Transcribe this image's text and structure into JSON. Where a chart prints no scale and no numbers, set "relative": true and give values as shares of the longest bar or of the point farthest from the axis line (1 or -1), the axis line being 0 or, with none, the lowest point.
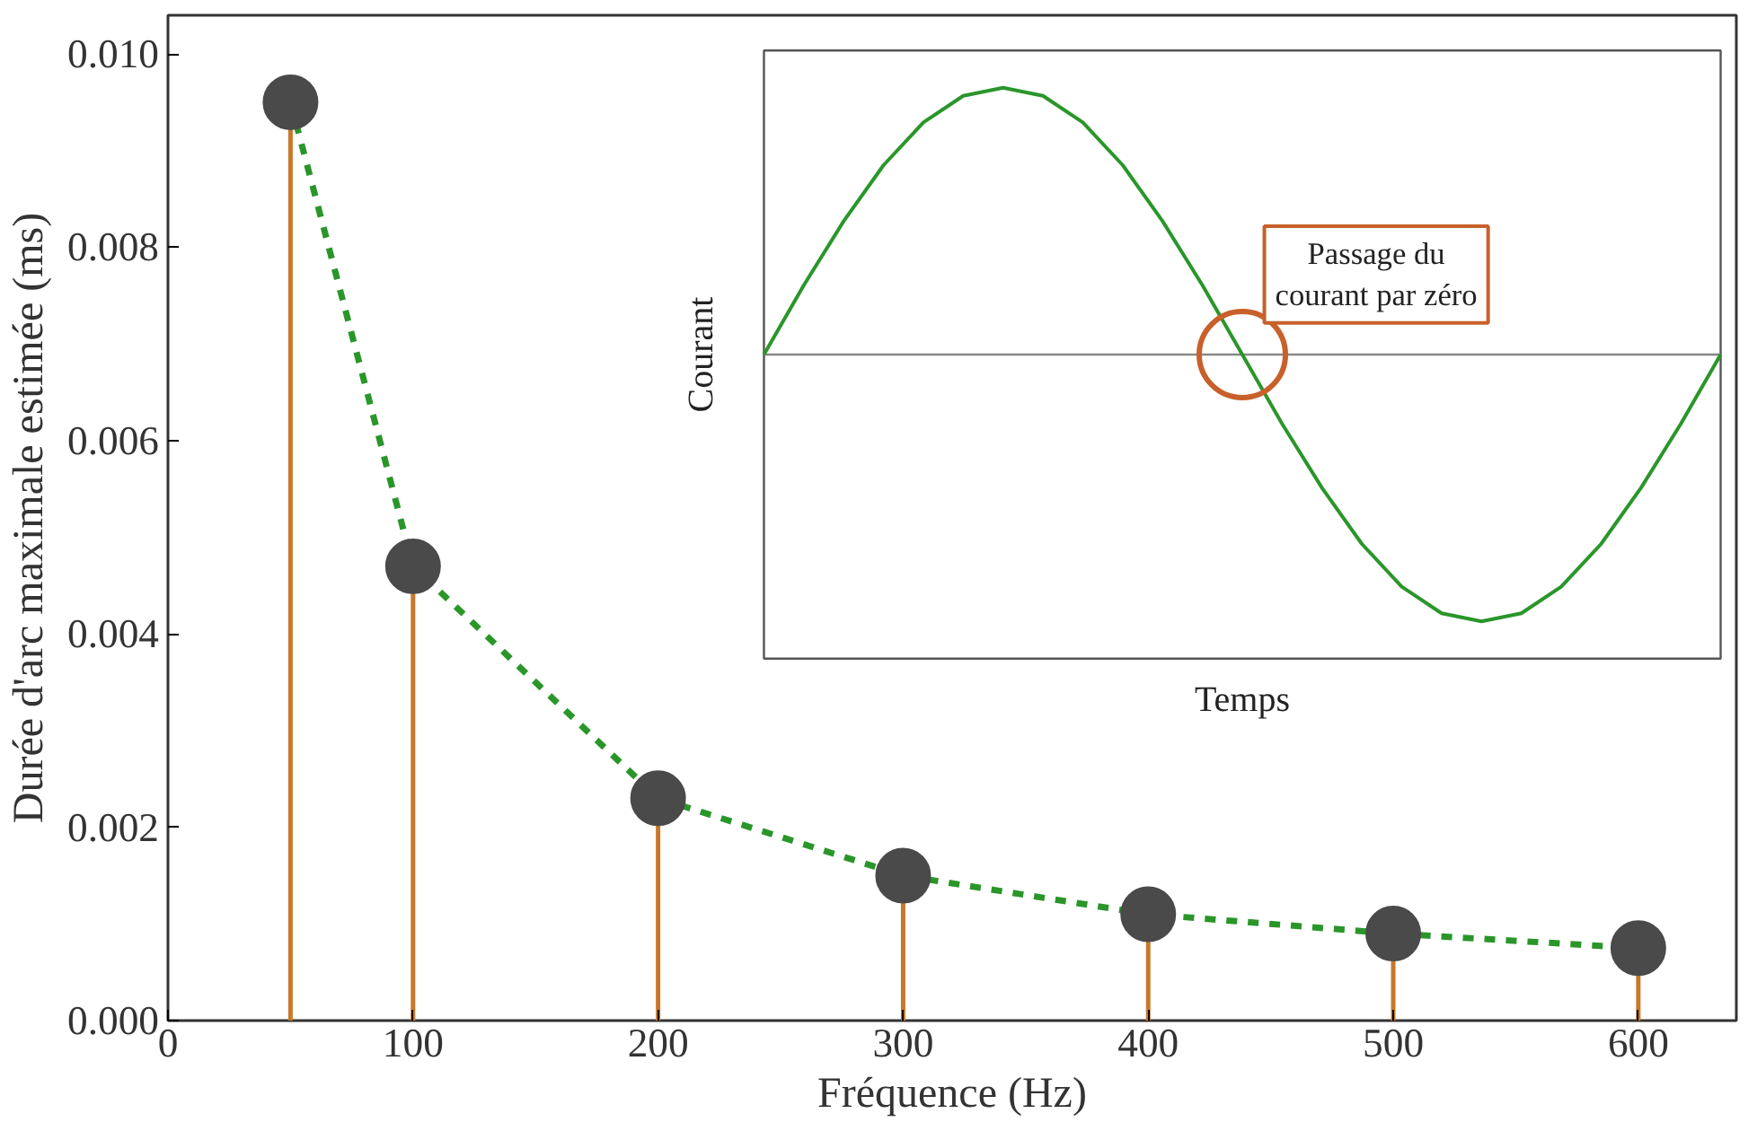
{
  "chart_data": [
    {
      "type": "lollipop",
      "xlabel": "Fréquence (Hz)",
      "ylabel": "Durée d'arc maximale estimée (ms)",
      "x": [
        50,
        100,
        200,
        300,
        400,
        500,
        600
      ],
      "series": [
        {
          "type": "lollipop",
          "color": "#c8782a",
          "colors": [
            "#4a4a4a",
            "#4a4a4a",
            "#4a4a4a",
            "#4a4a4a",
            "#4a4a4a",
            "#4a4a4a",
            "#4a4a4a"
          ],
          "marker": "circle",
          "values": [
            0.0095,
            0.0047,
            0.0023,
            0.0015,
            0.0011,
            0.0009,
            0.00075
          ]
        },
        {
          "type": "line",
          "color": "#2a962a",
          "line_style": "dashed",
          "marker": "none",
          "values": [
            0.0095,
            0.0047,
            0.0023,
            0.0015,
            0.0011,
            0.0009,
            0.00075
          ]
        }
      ],
      "xlim": [
        0,
        640
      ],
      "xticks": [
        0,
        100,
        200,
        300,
        400,
        500,
        600
      ],
      "ylim": [
        0,
        0.0104
      ],
      "yticks": [
        {
          "value": 0,
          "label": "0.000"
        },
        {
          "value": 0.002,
          "label": "0.002"
        },
        {
          "value": 0.004,
          "label": "0.004"
        },
        {
          "value": 0.006,
          "label": "0.006"
        },
        {
          "value": 0.008,
          "label": "0.008"
        },
        {
          "value": 0.01,
          "label": "0.010"
        }
      ],
      "grid": false
    },
    {
      "type": "line",
      "relative": true,
      "xlabel": "Temps",
      "ylabel": "Courant",
      "categories": [
        null,
        null,
        null,
        null,
        null,
        null,
        null,
        null,
        null,
        null,
        null,
        null,
        null,
        null,
        null,
        null,
        null,
        null,
        null,
        null,
        null,
        null,
        null,
        null,
        null
      ],
      "series": [
        {
          "color": "#2a962a",
          "values": [
            0,
            0.26,
            0.5,
            0.71,
            0.87,
            0.97,
            1,
            0.97,
            0.87,
            0.71,
            0.5,
            0.26,
            0,
            -0.26,
            -0.5,
            -0.71,
            -0.87,
            -0.97,
            -1,
            -0.97,
            -0.87,
            -0.71,
            -0.5,
            -0.26,
            0
          ]
        }
      ],
      "annotations": [
        "Passage du\ncourant par zéro"
      ],
      "tick_labels": false,
      "grid": false
    }
  ]
}
